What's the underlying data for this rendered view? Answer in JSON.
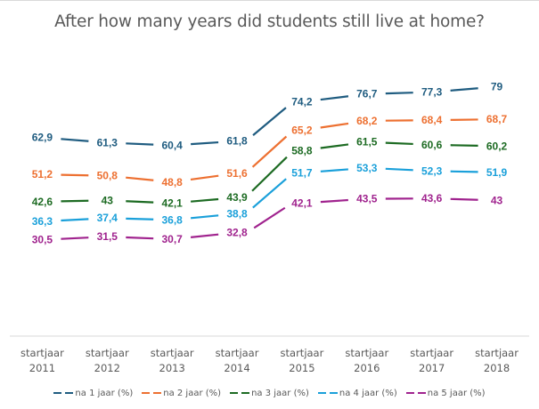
{
  "chart_data": {
    "type": "line",
    "title": "After how many years did students still live at home?",
    "xlabel": "",
    "ylabel": "",
    "ylim": [
      0,
      80
    ],
    "grid": false,
    "legend_position": "bottom",
    "categories": [
      [
        "startjaar",
        "2011"
      ],
      [
        "startjaar",
        "2012"
      ],
      [
        "startjaar",
        "2013"
      ],
      [
        "startjaar",
        "2014"
      ],
      [
        "startjaar",
        "2015"
      ],
      [
        "startjaar",
        "2016"
      ],
      [
        "startjaar",
        "2017"
      ],
      [
        "startjaar",
        "2018"
      ]
    ],
    "series": [
      {
        "name": "na 1 jaar (%)",
        "color": "#1f5c80",
        "values": [
          62.9,
          61.3,
          60.4,
          61.8,
          74.2,
          76.7,
          77.3,
          79
        ],
        "labels": [
          "62,9",
          "61,3",
          "60,4",
          "61,8",
          "74,2",
          "76,7",
          "77,3",
          "79"
        ]
      },
      {
        "name": "na 2 jaar (%)",
        "color": "#ed7031",
        "values": [
          51.2,
          50.8,
          48.8,
          51.6,
          65.2,
          68.2,
          68.4,
          68.7
        ],
        "labels": [
          "51,2",
          "50,8",
          "48,8",
          "51,6",
          "65,2",
          "68,2",
          "68,4",
          "68,7"
        ]
      },
      {
        "name": "na 3 jaar (%)",
        "color": "#1d6b23",
        "values": [
          42.6,
          43,
          42.1,
          43.9,
          58.8,
          61.5,
          60.6,
          60.2
        ],
        "labels": [
          "42,6",
          "43",
          "42,1",
          "43,9",
          "58,8",
          "61,5",
          "60,6",
          "60,2"
        ]
      },
      {
        "name": "na 4 jaar (%)",
        "color": "#1aa0da",
        "values": [
          36.3,
          37.4,
          36.8,
          38.8,
          51.7,
          53.3,
          52.3,
          51.9
        ],
        "labels": [
          "36,3",
          "37,4",
          "36,8",
          "38,8",
          "51,7",
          "53,3",
          "52,3",
          "51,9"
        ]
      },
      {
        "name": "na 5 jaar (%)",
        "color": "#a0238e",
        "values": [
          30.5,
          31.5,
          30.7,
          32.8,
          42.1,
          43.5,
          43.6,
          43
        ],
        "labels": [
          "30,5",
          "31,5",
          "30,7",
          "32,8",
          "42,1",
          "43,5",
          "43,6",
          "43"
        ]
      }
    ]
  }
}
